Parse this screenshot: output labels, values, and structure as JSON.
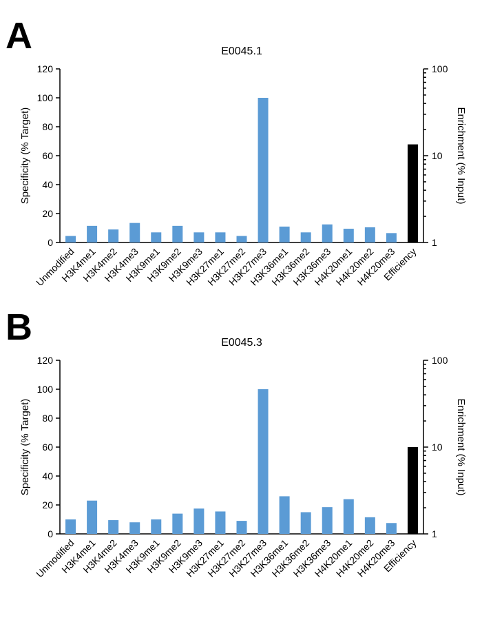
{
  "colors": {
    "bar": "#5b9bd5",
    "efficiency_bar": "#000000",
    "axis": "#000000"
  },
  "chart_data": [
    {
      "panel_letter": "A",
      "type": "bar",
      "title": "E0045.1",
      "ylabel": "Specificity (% Target)",
      "y2label": "Enrichment (% Input)",
      "ylim": [
        0,
        120
      ],
      "yticks": [
        "0",
        "20",
        "40",
        "60",
        "80",
        "100",
        "120"
      ],
      "y2scale": "log",
      "y2lim": [
        1,
        100
      ],
      "y2ticks": [
        "1",
        "10",
        "100"
      ],
      "categories": [
        "Unmodified",
        "H3K4me1",
        "H3K4me2",
        "H3K4me3",
        "H3K9me1",
        "H3K9me2",
        "H3K9me3",
        "H3K27me1",
        "H3K27me2",
        "H3K27me3",
        "H3K36me1",
        "H3K36me2",
        "H3K36me3",
        "H4K20me1",
        "H4K20me2",
        "H4K20me3",
        "Efficiency"
      ],
      "values": [
        4.5,
        11.5,
        9,
        13.5,
        7,
        11.5,
        7,
        7,
        4.5,
        100,
        11,
        7,
        12.5,
        9.5,
        10.5,
        6.5,
        null
      ],
      "efficiency_value": 13.5,
      "grid": false
    },
    {
      "panel_letter": "B",
      "type": "bar",
      "title": "E0045.3",
      "ylabel": "Specificity (% Target)",
      "y2label": "Enrichment (% Input)",
      "ylim": [
        0,
        120
      ],
      "yticks": [
        "0",
        "20",
        "40",
        "60",
        "80",
        "100",
        "120"
      ],
      "y2scale": "log",
      "y2lim": [
        1,
        100
      ],
      "y2ticks": [
        "1",
        "10",
        "100"
      ],
      "categories": [
        "Unmodified",
        "H3K4me1",
        "H3K4me2",
        "H3K4me3",
        "H3K9me1",
        "H3K9me2",
        "H3K9me3",
        "H3K27me1",
        "H3K27me2",
        "H3K27me3",
        "H3K36me1",
        "H3K36me2",
        "H3K36me3",
        "H4K20me1",
        "H4K20me2",
        "H4K20me3",
        "Efficiency"
      ],
      "values": [
        10,
        23,
        9.5,
        8,
        10,
        14,
        17.5,
        15.5,
        9,
        100,
        26,
        15,
        18.5,
        24,
        11.5,
        7.5,
        null
      ],
      "efficiency_value": 10,
      "grid": false
    }
  ]
}
